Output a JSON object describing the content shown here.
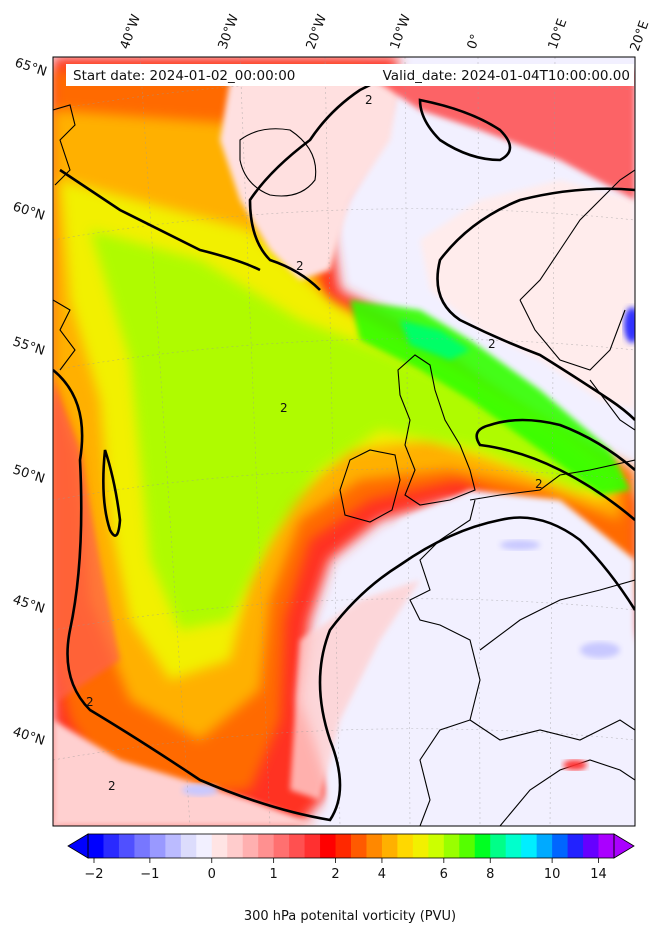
{
  "header": {
    "start_date": "Start date: 2024-01-02_00:00:00",
    "valid_date": "Valid_date: 2024-01-04T10:00:00.00"
  },
  "axes": {
    "top_ticks": [
      "40°W",
      "30°W",
      "20°W",
      "10°W",
      "0°",
      "10°E",
      "20°E"
    ],
    "left_ticks": [
      "65°N",
      "60°N",
      "55°N",
      "50°N",
      "45°N",
      "40°N"
    ]
  },
  "contour_label": "2",
  "colorbar": {
    "label": "300 hPa potenital vorticity (PVU)",
    "ticks": [
      "−2",
      "−1",
      "0",
      "1",
      "2",
      "4",
      "6",
      "8",
      "10",
      "14"
    ],
    "colors": [
      "#0000ff",
      "#2a2aff",
      "#5050ff",
      "#7777ff",
      "#9999ff",
      "#bbbbff",
      "#dcdcfc",
      "#f2f0ff",
      "#ffe4e4",
      "#ffcccc",
      "#ffb0b0",
      "#ff9090",
      "#ff7070",
      "#ff5050",
      "#ff3030",
      "#ff0000",
      "#ff2800",
      "#ff5a00",
      "#ff8800",
      "#ffb000",
      "#ffd800",
      "#f2f000",
      "#ccff00",
      "#99ff00",
      "#55ff00",
      "#00ff22",
      "#00ff88",
      "#00ffcc",
      "#00eeff",
      "#00aaff",
      "#0066ff",
      "#2222ff",
      "#6600ff",
      "#aa00ff"
    ]
  },
  "colors": {
    "background_low_pv": "#f2f0ff",
    "trough_yellow": "#f0f000",
    "trough_green": "#66ff00",
    "ridge_red": "#ff2000",
    "coast": "#000000"
  }
}
